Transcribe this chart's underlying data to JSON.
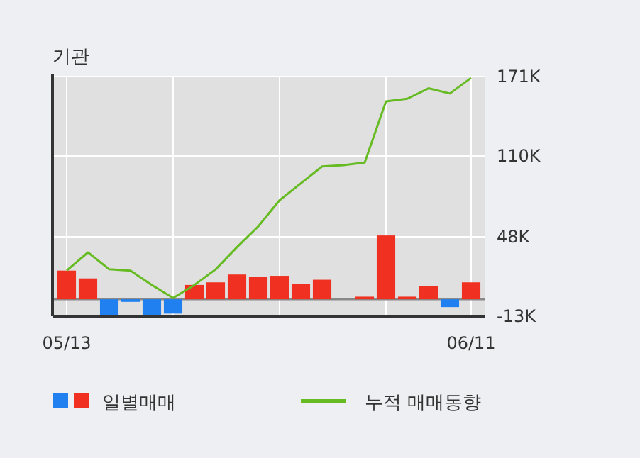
{
  "chart_data": {
    "type": "bar",
    "title": "기관",
    "categories": [
      "05/13",
      null,
      null,
      null,
      null,
      null,
      null,
      null,
      null,
      null,
      null,
      null,
      null,
      null,
      null,
      null,
      null,
      null,
      null,
      "06/11"
    ],
    "series": [
      {
        "name": "일별매매",
        "colors": [
          "#f03020",
          "#f03020",
          "#2080f0",
          "#2080f0",
          "#2080f0",
          "#2080f0",
          "#f03020",
          "#f03020",
          "#f03020",
          "#f03020",
          "#f03020",
          "#f03020",
          "#f03020",
          "#f03020",
          "#f03020",
          "#f03020",
          "#f03020",
          "#f03020",
          "#2080f0",
          "#f03020"
        ],
        "values": [
          22,
          16,
          -13,
          -2,
          -12,
          -11,
          11,
          13,
          19,
          17,
          18,
          12,
          15,
          0,
          2,
          49,
          2,
          10,
          -6,
          13
        ]
      },
      {
        "name": "누적 매매동향",
        "type": "line",
        "color": "#66bb22",
        "values": [
          22,
          36,
          23,
          22,
          11,
          1,
          11,
          23,
          40,
          56,
          76,
          89,
          102,
          103,
          105,
          152,
          154,
          162,
          158,
          170
        ]
      }
    ],
    "ylim": [
      -13,
      171
    ],
    "yticks": [
      {
        "value": -13,
        "label": "-13K"
      },
      {
        "value": 48,
        "label": "48K"
      },
      {
        "value": 110,
        "label": "110K"
      },
      {
        "value": 171,
        "label": "171K"
      }
    ],
    "grid": true,
    "legend": "bottom"
  }
}
